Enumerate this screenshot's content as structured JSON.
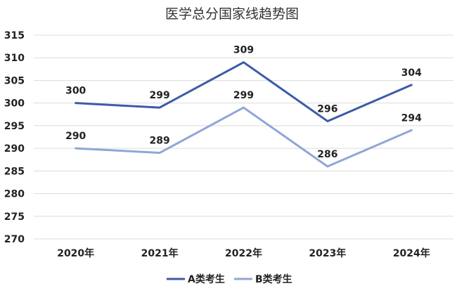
{
  "chart_data": {
    "type": "line",
    "title": "医学总分国家线趋势图",
    "categories": [
      "2020年",
      "2021年",
      "2022年",
      "2023年",
      "2024年"
    ],
    "series": [
      {
        "name": "A类考生",
        "values": [
          300,
          299,
          309,
          296,
          304
        ],
        "color": "#3c5ba7"
      },
      {
        "name": "B类考生",
        "values": [
          290,
          289,
          299,
          286,
          294
        ],
        "color": "#91a5d8"
      }
    ],
    "ylim": [
      270,
      315
    ],
    "yticks": [
      "270",
      "275",
      "280",
      "285",
      "290",
      "295",
      "300",
      "305",
      "310",
      "315"
    ],
    "grid": true,
    "legend_position": "bottom"
  }
}
